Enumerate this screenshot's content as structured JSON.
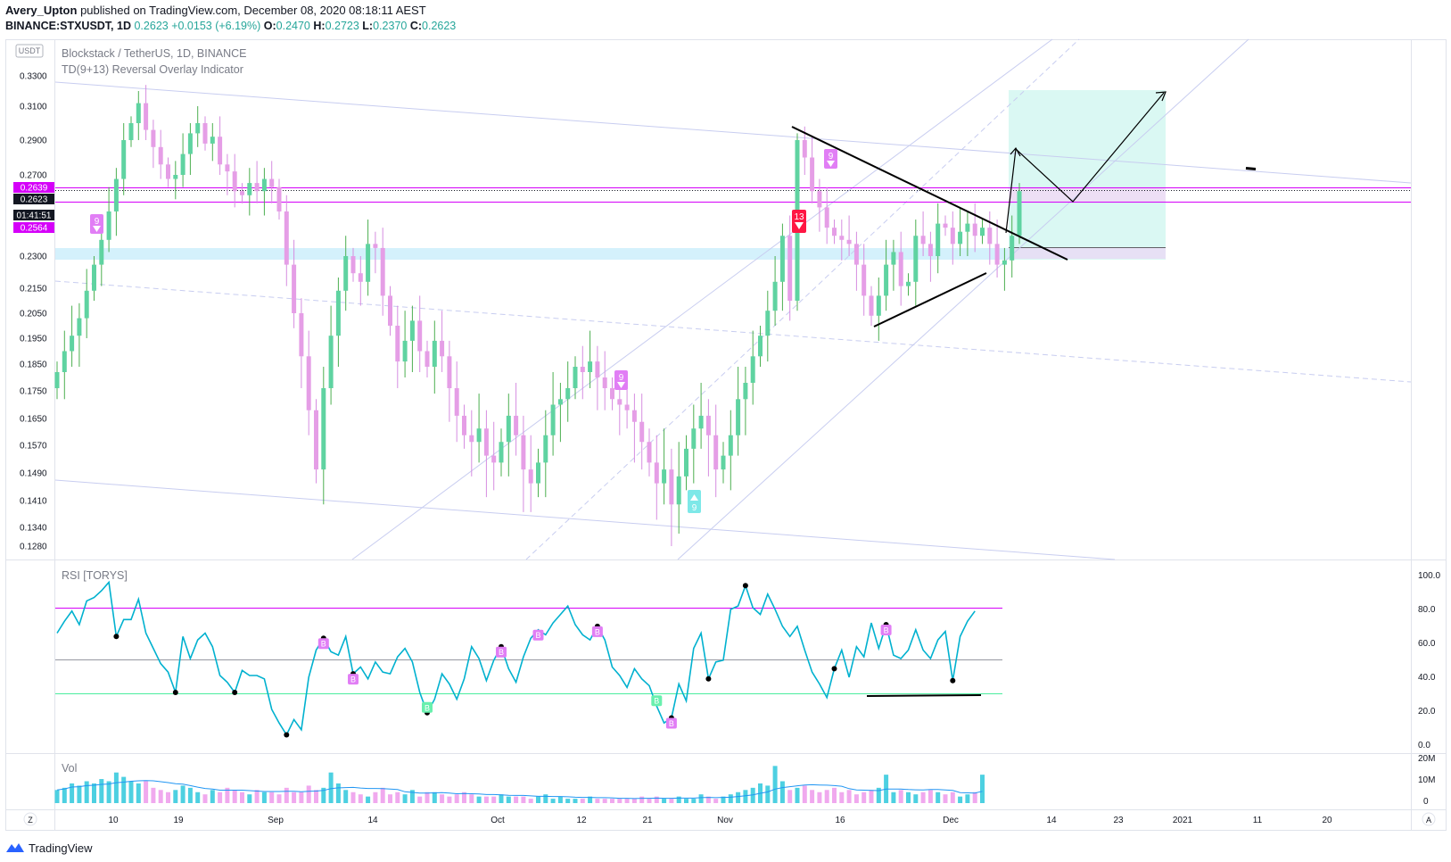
{
  "header": {
    "author": "Avery_Upton",
    "published": "published on TradingView.com, December 08, 2020 08:18:11 AEST",
    "symbol": "BINANCE:STXUSDT, 1D",
    "last": "0.2623",
    "change": "+0.0153 (+6.19%)",
    "o_label": "O:",
    "o": "0.2470",
    "h_label": "H:",
    "h": "0.2723",
    "l_label": "L:",
    "l": "0.2370",
    "c_label": "C:",
    "c": "0.2623"
  },
  "pane": {
    "title": "Blockstack / TetherUS, 1D, BINANCE",
    "indicator": "TD(9+13) Reversal Overlay Indicator",
    "currency": "USDT",
    "rsi_title": "RSI [TORYS]",
    "vol_title": "Vol"
  },
  "price_labels": {
    "upper": "0.2639",
    "last": "0.2623",
    "countdown": "01:41:51",
    "lower": "0.2564"
  },
  "td_markers": {
    "nine": "9",
    "thirteen": "13",
    "rsi_bear": "B",
    "rsi_bull": "B"
  },
  "colors": {
    "bull": "#5fd3a1",
    "bear": "#e59ee6",
    "rsi_line": "#00b1cf",
    "magenta": "#d500f9",
    "zone": "#cdeefc",
    "target": "#d6f7f2"
  },
  "footer": {
    "brand": "TradingView",
    "z_btn": "Z",
    "a_btn": "A"
  },
  "chart_data": [
    {
      "type": "candlestick",
      "title": "Blockstack / TetherUS, 1D, BINANCE",
      "y_ticks": [
        "0.3300",
        "0.3100",
        "0.2900",
        "0.2700",
        "0.2300",
        "0.2150",
        "0.2050",
        "0.1950",
        "0.1850",
        "0.1750",
        "0.1650",
        "0.1570",
        "0.1490",
        "0.1410",
        "0.1340",
        "0.1280"
      ],
      "x_ticks": [
        "10",
        "19",
        "Sep",
        "14",
        "Oct",
        "12",
        "21",
        "Nov",
        "16",
        "Dec",
        "14",
        "23",
        "2021",
        "11",
        "20"
      ],
      "ylim": [
        0.125,
        0.34
      ],
      "closes": [
        0.182,
        0.19,
        0.196,
        0.203,
        0.214,
        0.226,
        0.238,
        0.252,
        0.268,
        0.29,
        0.3,
        0.312,
        0.296,
        0.286,
        0.276,
        0.268,
        0.27,
        0.282,
        0.294,
        0.3,
        0.288,
        0.292,
        0.276,
        0.272,
        0.262,
        0.26,
        0.266,
        0.262,
        0.268,
        0.264,
        0.252,
        0.226,
        0.205,
        0.188,
        0.168,
        0.15,
        0.176,
        0.196,
        0.214,
        0.23,
        0.222,
        0.218,
        0.236,
        0.234,
        0.212,
        0.2,
        0.186,
        0.194,
        0.202,
        0.19,
        0.184,
        0.194,
        0.188,
        0.176,
        0.166,
        0.16,
        0.158,
        0.162,
        0.154,
        0.152,
        0.158,
        0.166,
        0.16,
        0.15,
        0.146,
        0.152,
        0.16,
        0.17,
        0.172,
        0.176,
        0.184,
        0.182,
        0.186,
        0.18,
        0.176,
        0.172,
        0.17,
        0.168,
        0.164,
        0.158,
        0.152,
        0.146,
        0.15,
        0.14,
        0.148,
        0.156,
        0.162,
        0.166,
        0.16,
        0.15,
        0.154,
        0.16,
        0.172,
        0.178,
        0.188,
        0.196,
        0.206,
        0.218,
        0.24,
        0.21,
        0.29,
        0.28,
        0.262,
        0.254,
        0.244,
        0.24,
        0.238,
        0.236,
        0.226,
        0.212,
        0.204,
        0.212,
        0.226,
        0.232,
        0.216,
        0.218,
        0.24,
        0.236,
        0.23,
        0.246,
        0.244,
        0.236,
        0.242,
        0.246,
        0.24,
        0.244,
        0.236,
        0.226,
        0.228,
        0.24,
        0.262
      ],
      "rsi": [
        65,
        72,
        78,
        70,
        84,
        86,
        90,
        95,
        63,
        73,
        73,
        85,
        65,
        56,
        47,
        42,
        30,
        63,
        50,
        61,
        65,
        57,
        40,
        36,
        30,
        43,
        40,
        40,
        38,
        20,
        12,
        5,
        14,
        8,
        39,
        55,
        62,
        54,
        52,
        63,
        41,
        45,
        38,
        48,
        42,
        41,
        51,
        56,
        48,
        30,
        18,
        26,
        41,
        35,
        26,
        38,
        57,
        50,
        37,
        49,
        57,
        44,
        36,
        51,
        62,
        67,
        64,
        71,
        76,
        81,
        70,
        64,
        61,
        69,
        61,
        45,
        40,
        33,
        44,
        38,
        34,
        22,
        12,
        15,
        35,
        25,
        56,
        65,
        38,
        48,
        49,
        79,
        81,
        93,
        80,
        76,
        88,
        79,
        69,
        63,
        69,
        55,
        42,
        35,
        27,
        44,
        55,
        39,
        57,
        51,
        71,
        56,
        70,
        52,
        50,
        55,
        67,
        55,
        50,
        61,
        66,
        37,
        63,
        72,
        78
      ],
      "volume_m": [
        6,
        7,
        9,
        8,
        10,
        9,
        11,
        10,
        14,
        12,
        10,
        9,
        10,
        7,
        6,
        5,
        6,
        8,
        7,
        5,
        4,
        6,
        5,
        7,
        6,
        5,
        4,
        6,
        5,
        5,
        4,
        7,
        5,
        5,
        8,
        6,
        7,
        14,
        9,
        6,
        5,
        4,
        3,
        5,
        7,
        4,
        5,
        4,
        6,
        3,
        5,
        5,
        4,
        3,
        4,
        5,
        4,
        3,
        3,
        3,
        4,
        3,
        3,
        3,
        2,
        3,
        4,
        2,
        3,
        2,
        2,
        2,
        3,
        2,
        2,
        2,
        2,
        2,
        2,
        3,
        2,
        3,
        2,
        2,
        3,
        2,
        2,
        4,
        3,
        2,
        3,
        4,
        5,
        6,
        7,
        9,
        8,
        17,
        10,
        6,
        7,
        8,
        6,
        5,
        6,
        7,
        5,
        6,
        4,
        5,
        6,
        7,
        13,
        5,
        6,
        5,
        4,
        5,
        6,
        5,
        4,
        5,
        3,
        4,
        5,
        13
      ]
    }
  ]
}
